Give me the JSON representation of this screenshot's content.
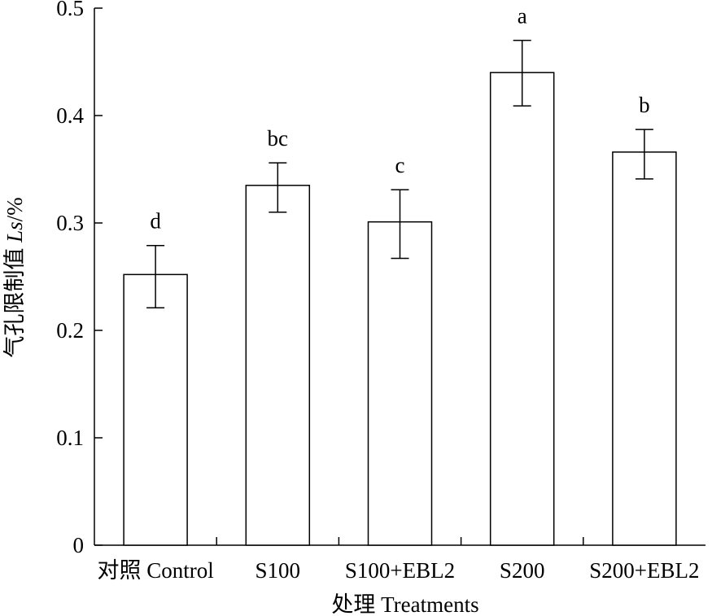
{
  "chart_data": {
    "type": "bar",
    "categories": [
      "对照 Control",
      "S100",
      "S100+EBL2",
      "S200",
      "S200+EBL2"
    ],
    "values": [
      0.252,
      0.335,
      0.301,
      0.44,
      0.366
    ],
    "error_low": [
      0.221,
      0.31,
      0.267,
      0.409,
      0.341
    ],
    "error_high": [
      0.279,
      0.356,
      0.331,
      0.47,
      0.387
    ],
    "significance_labels": [
      "d",
      "bc",
      "c",
      "a",
      "b"
    ],
    "xlabel": "处理 Treatments",
    "ylabel_prefix": "气孔限制值 ",
    "ylabel_var": "Ls",
    "ylabel_suffix": "/%",
    "ylim": [
      0,
      0.5
    ],
    "yticks": [
      0,
      0.1,
      0.2,
      0.3,
      0.4,
      0.5
    ],
    "ytick_labels": [
      "0",
      "0.1",
      "0.2",
      "0.3",
      "0.4",
      "0.5"
    ],
    "grid": false,
    "bar_fill": "#ffffff",
    "bar_stroke": "#000000"
  }
}
